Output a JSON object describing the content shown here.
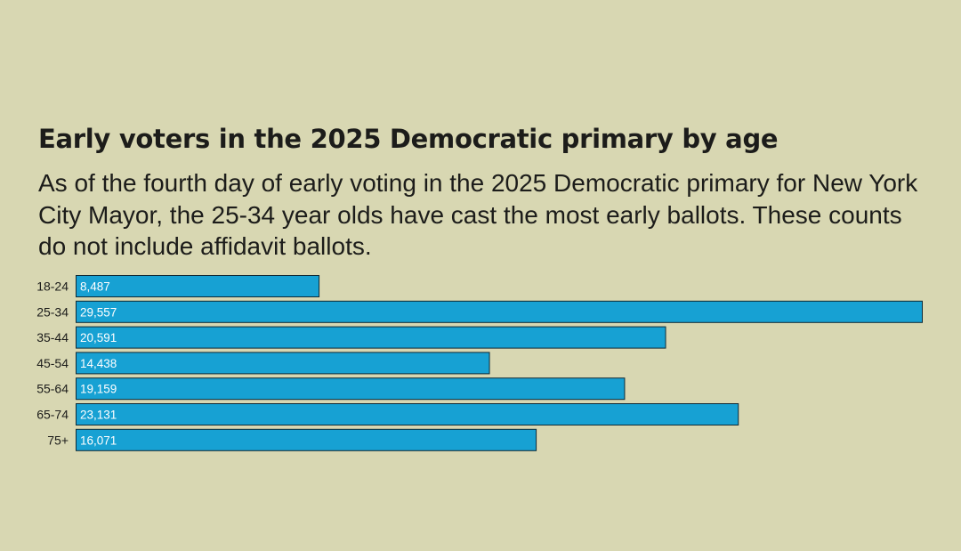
{
  "chart_data": {
    "type": "bar",
    "orientation": "horizontal",
    "title": "Early voters in the 2025 Democratic primary by age",
    "subtitle": "As of the fourth day of early voting in the 2025 Democratic primary for New York City Mayor, the 25-34 year olds have cast the most early ballots. These counts do not include affidavit ballots.",
    "categories": [
      "18-24",
      "25-34",
      "35-44",
      "45-54",
      "55-64",
      "65-74",
      "75+"
    ],
    "values": [
      8487,
      29557,
      20591,
      14438,
      19159,
      23131,
      16071
    ],
    "value_labels": [
      "8,487",
      "29,557",
      "20,591",
      "14,438",
      "19,159",
      "23,131",
      "16,071"
    ],
    "xlim": [
      0,
      29557
    ],
    "grid": false,
    "legend": "none",
    "colors": {
      "bar": "#17a1d3",
      "bar_outline": "#0f2a36",
      "background": "#d8d7b2",
      "text": "#1c1c1a"
    }
  }
}
